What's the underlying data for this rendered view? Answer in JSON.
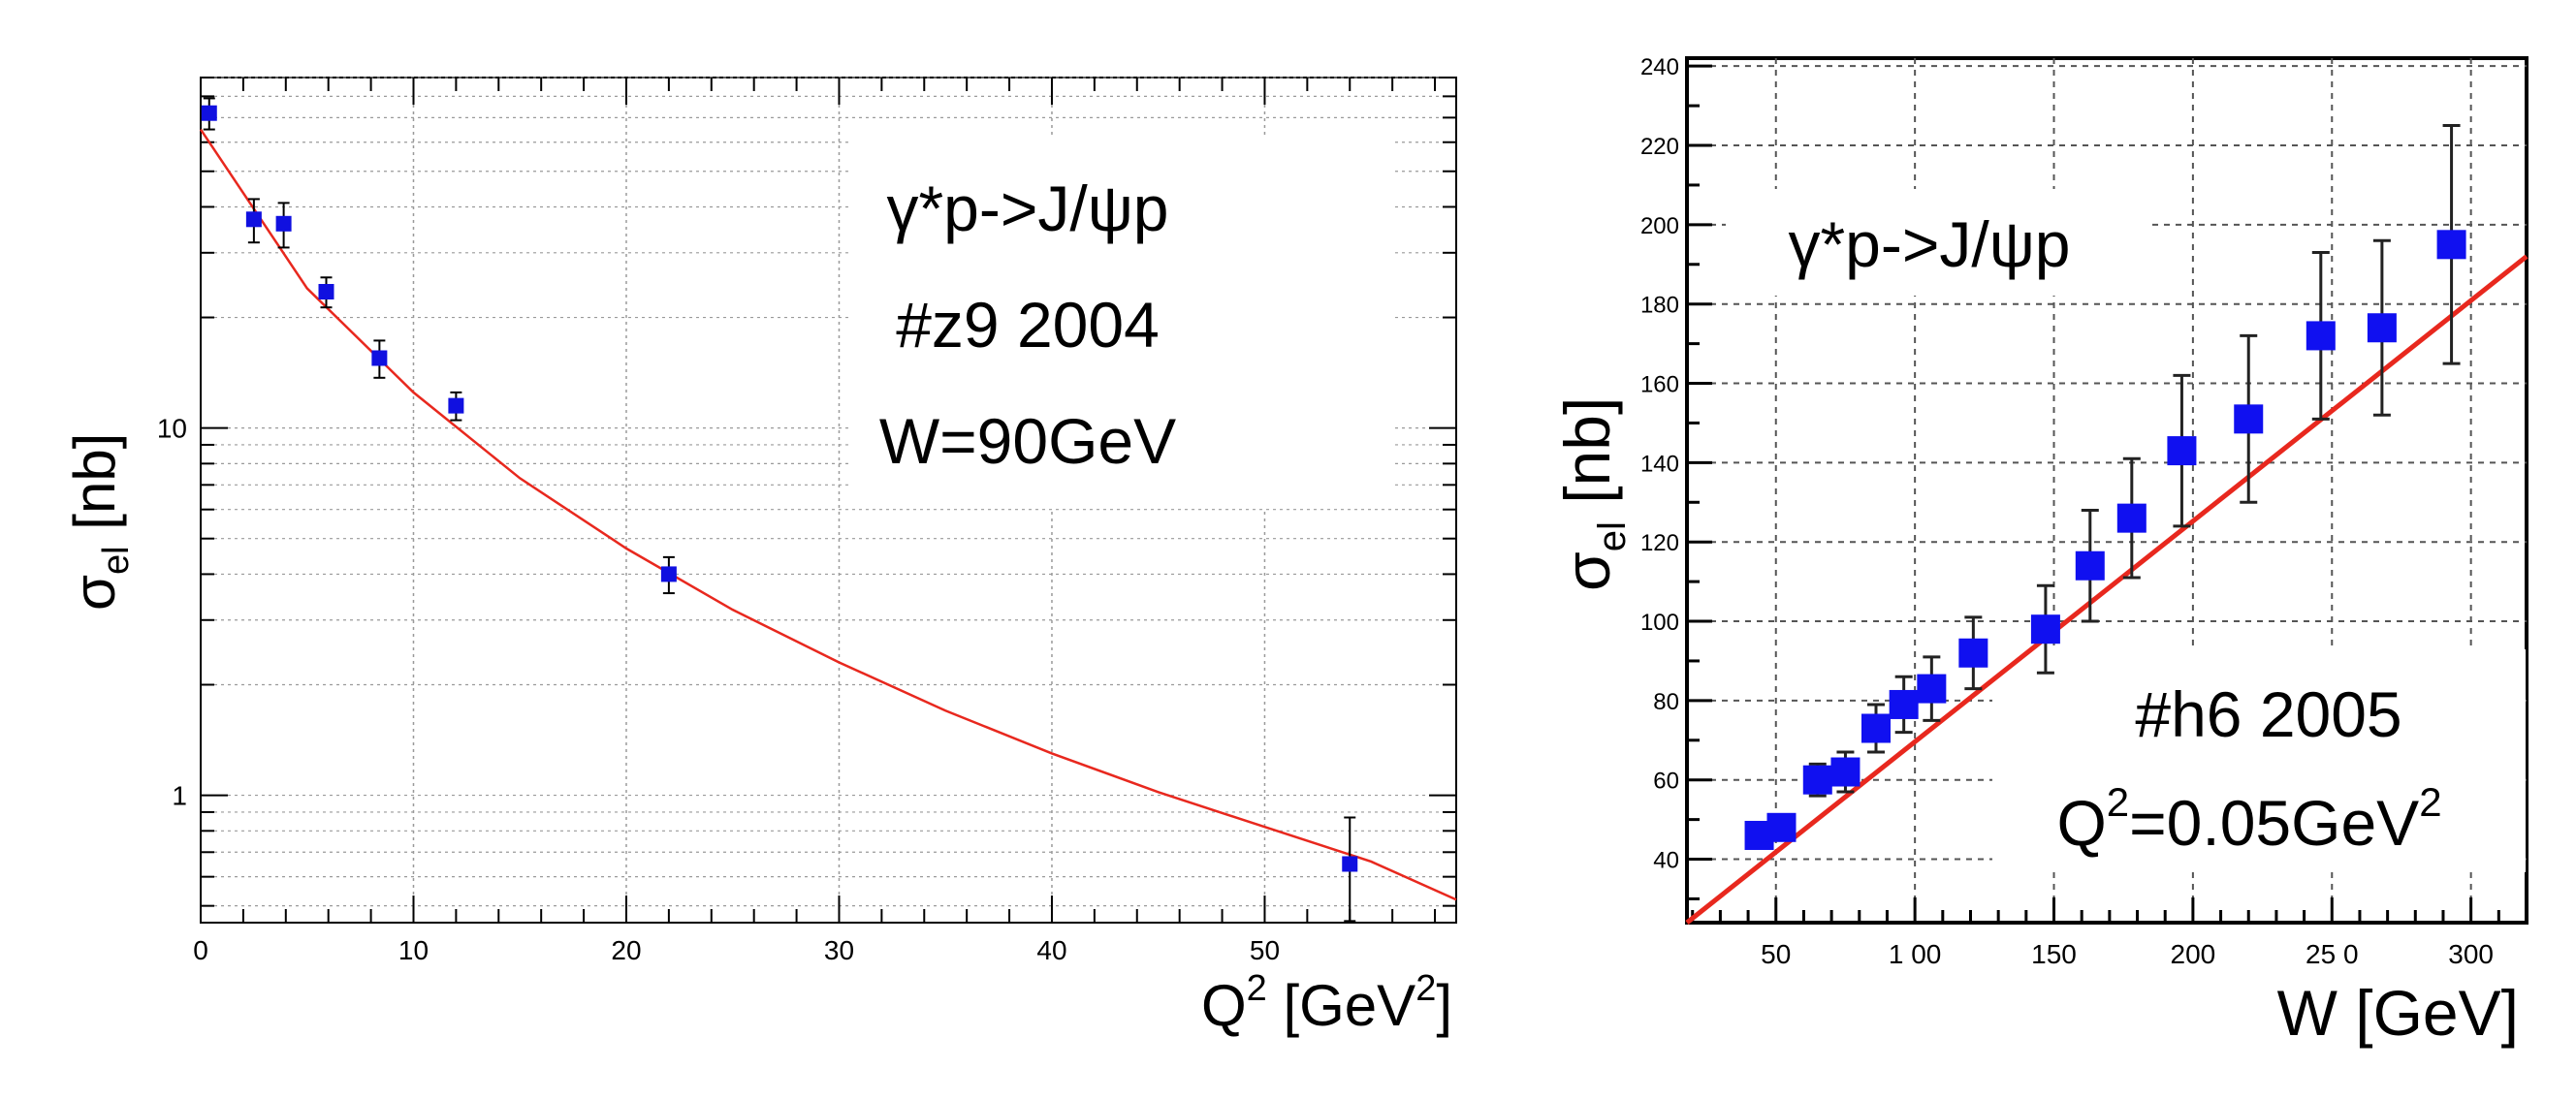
{
  "chart_data": [
    {
      "type": "scatter",
      "yscale": "log",
      "xlabel": {
        "base": "Q",
        "sup": "2",
        "rest": " [GeV",
        "sup2": "2",
        "end": "]"
      },
      "ylabel": {
        "base": "σ",
        "sub": "el",
        "rest": " [nb]"
      },
      "xlim": [
        0,
        59
      ],
      "ylim": [
        0.45,
        90
      ],
      "xticks": [
        0,
        10,
        20,
        30,
        40,
        50
      ],
      "xtick_labels": [
        "0",
        "10",
        "20",
        "30",
        "40",
        "50"
      ],
      "yticks": [
        1,
        10
      ],
      "ytick_labels": [
        "1",
        "10"
      ],
      "grid": true,
      "series": [
        {
          "name": "data",
          "color": "#1010e0",
          "points": [
            {
              "x": 0.4,
              "y": 72,
              "err": 7
            },
            {
              "x": 2.5,
              "y": 37,
              "err": 5
            },
            {
              "x": 3.9,
              "y": 36,
              "err": 5
            },
            {
              "x": 5.9,
              "y": 23.5,
              "err": 2.2
            },
            {
              "x": 8.4,
              "y": 15.5,
              "err": 1.8
            },
            {
              "x": 12.0,
              "y": 11.5,
              "err": 1.0
            },
            {
              "x": 22.0,
              "y": 4.0,
              "err": 0.45
            },
            {
              "x": 54.0,
              "y": 0.65,
              "err": 0.22
            }
          ]
        }
      ],
      "fit": {
        "color": "#e8281e",
        "x": [
          0,
          5,
          10,
          15,
          20,
          25,
          30,
          35,
          40,
          45,
          50,
          55,
          59
        ],
        "y": [
          65,
          24,
          12.5,
          7.3,
          4.7,
          3.2,
          2.3,
          1.7,
          1.3,
          1.02,
          0.82,
          0.66,
          0.52
        ]
      },
      "annotations": [
        "γ*p->J/ψp",
        "#z9 2004",
        "W=90GeV"
      ]
    },
    {
      "type": "scatter",
      "yscale": "linear",
      "xlabel": {
        "text": "W [GeV]"
      },
      "ylabel": {
        "base": "σ",
        "sub": "el",
        "rest": " [nb]"
      },
      "xlim": [
        18,
        320
      ],
      "ylim": [
        24,
        242
      ],
      "xticks": [
        50,
        100,
        150,
        200,
        250,
        300
      ],
      "xtick_labels": [
        "50",
        "1 00",
        "150",
        "200",
        "25 0",
        "300"
      ],
      "yticks": [
        40,
        60,
        80,
        100,
        120,
        140,
        160,
        180,
        200,
        220,
        240
      ],
      "ytick_labels": [
        "40",
        "60",
        "80",
        "100",
        "120",
        "140",
        "160",
        "180",
        "200",
        "220",
        "240"
      ],
      "grid": true,
      "series": [
        {
          "name": "data",
          "color": "#1010f0",
          "points": [
            {
              "x": 44,
              "y": 46,
              "err": 3
            },
            {
              "x": 52,
              "y": 48,
              "err": 3
            },
            {
              "x": 65,
              "y": 60,
              "err": 4
            },
            {
              "x": 75,
              "y": 62,
              "err": 5
            },
            {
              "x": 86,
              "y": 73,
              "err": 6
            },
            {
              "x": 96,
              "y": 79,
              "err": 7
            },
            {
              "x": 106,
              "y": 83,
              "err": 8
            },
            {
              "x": 121,
              "y": 92,
              "err": 9
            },
            {
              "x": 147,
              "y": 98,
              "err": 11
            },
            {
              "x": 163,
              "y": 114,
              "err": 14
            },
            {
              "x": 178,
              "y": 126,
              "err": 15
            },
            {
              "x": 196,
              "y": 143,
              "err": 19
            },
            {
              "x": 220,
              "y": 151,
              "err": 21
            },
            {
              "x": 246,
              "y": 172,
              "err": 21
            },
            {
              "x": 268,
              "y": 174,
              "err": 22
            },
            {
              "x": 293,
              "y": 195,
              "err": 30
            }
          ]
        }
      ],
      "fit": {
        "color": "#e8281e",
        "x": [
          18,
          320
        ],
        "y": [
          24,
          192
        ]
      },
      "annotations": [
        "γ*p->J/ψp",
        "#h6 2005"
      ],
      "annotation_q2": {
        "base": "Q",
        "sup": "2",
        "rest": "=0.05GeV",
        "sup2": "2"
      }
    }
  ]
}
